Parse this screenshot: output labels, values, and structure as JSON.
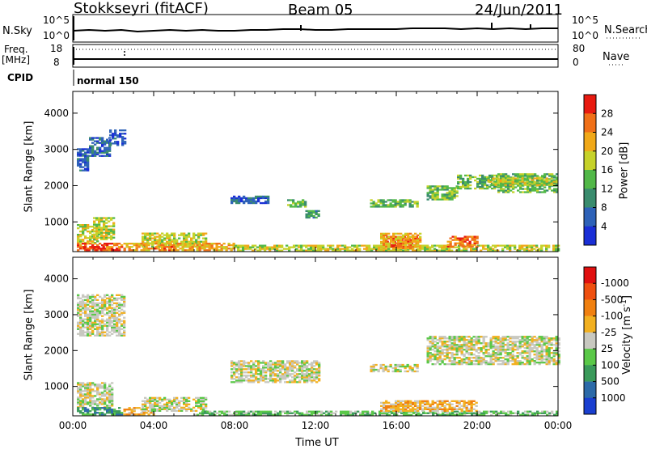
{
  "header": {
    "station": "Stokkseyri (fitACF)",
    "beam": "Beam 05",
    "date": "24/Jun/2011"
  },
  "noise_panel": {
    "left_label": "N.Sky",
    "left_ticks": [
      "10^5",
      "10^0"
    ],
    "right_ticks": [
      "10^5",
      "10^0"
    ],
    "right_label": "N.Search"
  },
  "freq_panel": {
    "left_label_1": "Freq.",
    "left_label_2": "[MHz]",
    "left_ticks": [
      "18",
      "8"
    ],
    "right_ticks": [
      "80",
      "0"
    ],
    "right_label": "Nave"
  },
  "cpid": {
    "label": "CPID",
    "mode": "normal 150"
  },
  "chart_data": [
    {
      "type": "heatmap",
      "name": "power",
      "ylabel": "Slant Range [km]",
      "ylim": [
        180,
        4600
      ],
      "yticks": [
        "1000",
        "2000",
        "3000",
        "4000"
      ],
      "xlim_hours": [
        0,
        24
      ],
      "colorbar": {
        "label": "Power [dB]",
        "ticks": [
          "4",
          "8",
          "12",
          "16",
          "20",
          "24",
          "28"
        ],
        "colors": [
          "#1a2fd6",
          "#2e62b8",
          "#3a8c6e",
          "#52b848",
          "#c6d22a",
          "#f0a818",
          "#f07018",
          "#e81a10"
        ]
      },
      "echo_regions": [
        {
          "t0": 0.2,
          "t1": 0.7,
          "r0": 2400,
          "r1": 3000,
          "level": 1
        },
        {
          "t0": 0.8,
          "t1": 1.8,
          "r0": 2800,
          "r1": 3300,
          "level": 1
        },
        {
          "t0": 1.8,
          "t1": 2.6,
          "r0": 3100,
          "r1": 3550,
          "level": 1
        },
        {
          "t0": 0.2,
          "t1": 1.2,
          "r0": 400,
          "r1": 900,
          "level": 4
        },
        {
          "t0": 1.0,
          "t1": 2.0,
          "r0": 500,
          "r1": 1100,
          "level": 4
        },
        {
          "t0": 0.2,
          "t1": 2.4,
          "r0": 200,
          "r1": 400,
          "level": 6
        },
        {
          "t0": 0.5,
          "t1": 1.5,
          "r0": 200,
          "r1": 320,
          "level": 7
        },
        {
          "t0": 3.4,
          "t1": 6.6,
          "r0": 300,
          "r1": 700,
          "level": 4
        },
        {
          "t0": 2.5,
          "t1": 8.0,
          "r0": 200,
          "r1": 400,
          "level": 5
        },
        {
          "t0": 4.0,
          "t1": 5.0,
          "r0": 200,
          "r1": 320,
          "level": 6
        },
        {
          "t0": 8.0,
          "t1": 24.0,
          "r0": 190,
          "r1": 330,
          "level": 4
        },
        {
          "t0": 7.8,
          "t1": 9.6,
          "r0": 1500,
          "r1": 1700,
          "level": 1
        },
        {
          "t0": 10.6,
          "t1": 11.5,
          "r0": 1400,
          "r1": 1600,
          "level": 3
        },
        {
          "t0": 11.5,
          "t1": 12.2,
          "r0": 1100,
          "r1": 1300,
          "level": 2
        },
        {
          "t0": 14.7,
          "t1": 17.0,
          "r0": 1400,
          "r1": 1600,
          "level": 3
        },
        {
          "t0": 15.5,
          "t1": 17.0,
          "r0": 300,
          "r1": 600,
          "level": 7
        },
        {
          "t0": 15.2,
          "t1": 17.2,
          "r0": 250,
          "r1": 700,
          "level": 5
        },
        {
          "t0": 18.5,
          "t1": 20.0,
          "r0": 300,
          "r1": 600,
          "level": 6
        },
        {
          "t0": 17.5,
          "t1": 19.0,
          "r0": 1600,
          "r1": 2000,
          "level": 3
        },
        {
          "t0": 19.0,
          "t1": 21.0,
          "r0": 1900,
          "r1": 2300,
          "level": 3
        },
        {
          "t0": 21.0,
          "t1": 24.0,
          "r0": 1800,
          "r1": 2300,
          "level": 3
        },
        {
          "t0": 20.5,
          "t1": 23.8,
          "r0": 2000,
          "r1": 2200,
          "level": 4
        }
      ]
    },
    {
      "type": "heatmap",
      "name": "velocity",
      "ylabel": "Slant Range [km]",
      "xlabel": "Time UT",
      "ylim": [
        180,
        4600
      ],
      "yticks": [
        "1000",
        "2000",
        "3000",
        "4000"
      ],
      "xticks": [
        "00:00",
        "04:00",
        "08:00",
        "12:00",
        "16:00",
        "20:00",
        "00:00"
      ],
      "xlim_hours": [
        0,
        24
      ],
      "colorbar": {
        "label": "Velocity [m s^-1]",
        "ticks": [
          "1000",
          "500",
          "100",
          "25",
          "-25",
          "-100",
          "-500",
          "-1000"
        ],
        "colors": [
          "#1a3fd0",
          "#2c6aa8",
          "#3a9a5a",
          "#5ac848",
          "#c8c8c0",
          "#f2b020",
          "#f08010",
          "#ef5010",
          "#e01010"
        ]
      },
      "echo_regions": [
        {
          "t0": 0.2,
          "t1": 2.6,
          "r0": 2400,
          "r1": 3550,
          "level": 4
        },
        {
          "t0": 0.2,
          "t1": 2.0,
          "r0": 400,
          "r1": 1100,
          "level": 4
        },
        {
          "t0": 0.2,
          "t1": 2.4,
          "r0": 200,
          "r1": 400,
          "level": 2
        },
        {
          "t0": 2.5,
          "t1": 4.0,
          "r0": 200,
          "r1": 400,
          "level": 5
        },
        {
          "t0": 3.4,
          "t1": 6.6,
          "r0": 300,
          "r1": 700,
          "level": 4
        },
        {
          "t0": 6.0,
          "t1": 24.0,
          "r0": 190,
          "r1": 320,
          "level": 3
        },
        {
          "t0": 7.8,
          "t1": 12.2,
          "r0": 1100,
          "r1": 1700,
          "level": 4
        },
        {
          "t0": 14.7,
          "t1": 17.0,
          "r0": 1400,
          "r1": 1600,
          "level": 4
        },
        {
          "t0": 15.2,
          "t1": 17.5,
          "r0": 300,
          "r1": 600,
          "level": 5
        },
        {
          "t0": 17.5,
          "t1": 20.0,
          "r0": 300,
          "r1": 600,
          "level": 5
        },
        {
          "t0": 17.5,
          "t1": 24.0,
          "r0": 1600,
          "r1": 2400,
          "level": 4
        }
      ]
    }
  ]
}
